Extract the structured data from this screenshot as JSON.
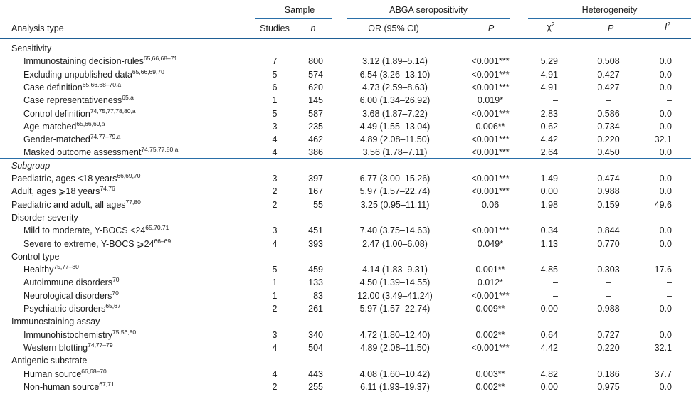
{
  "header": {
    "sample": "Sample",
    "abga": "ABGA seropositivity",
    "heterogeneity": "Heterogeneity",
    "analysis_type": "Analysis type",
    "studies": "Studies",
    "n": "n",
    "or_ci": "OR (95% CI)",
    "p": "P",
    "chi2_base": "χ",
    "chi2_sup": "2",
    "p2": "P",
    "i2_base": "I",
    "i2_sup": "2"
  },
  "rows": [
    {
      "type": "section",
      "label": "Sensitivity"
    },
    {
      "type": "data",
      "indent": true,
      "label": "Immunostaining decision-rules",
      "ref": "65,66,68–71",
      "studies": "7",
      "n": "800",
      "or": "3.12 (1.89–5.14)",
      "p": "<0.001***",
      "chi2": "5.29",
      "het_p": "0.508",
      "i2": "0.0"
    },
    {
      "type": "data",
      "indent": true,
      "label": "Excluding unpublished data",
      "ref": "65,66,69,70",
      "studies": "5",
      "n": "574",
      "or": "6.54 (3.26–13.10)",
      "p": "<0.001***",
      "chi2": "4.91",
      "het_p": "0.427",
      "i2": "0.0"
    },
    {
      "type": "data",
      "indent": true,
      "label": "Case definition",
      "ref": "65,66,68–70,a",
      "studies": "6",
      "n": "620",
      "or": "4.73 (2.59–8.63)",
      "p": "<0.001***",
      "chi2": "4.91",
      "het_p": "0.427",
      "i2": "0.0"
    },
    {
      "type": "data",
      "indent": true,
      "label": "Case representativeness",
      "ref": "65,a",
      "studies": "1",
      "n": "145",
      "or": "6.00 (1.34–26.92)",
      "p": "0.019*",
      "chi2": "–",
      "het_p": "–",
      "i2": "–"
    },
    {
      "type": "data",
      "indent": true,
      "label": "Control definition",
      "ref": "74,75,77,78,80,a",
      "studies": "5",
      "n": "587",
      "or": "3.68 (1.87–7.22)",
      "p": "<0.001***",
      "chi2": "2.83",
      "het_p": "0.586",
      "i2": "0.0"
    },
    {
      "type": "data",
      "indent": true,
      "label": "Age-matched",
      "ref": "65,66,69,a",
      "studies": "3",
      "n": "235",
      "or": "4.49 (1.55–13.04)",
      "p": "0.006**",
      "chi2": "0.62",
      "het_p": "0.734",
      "i2": "0.0"
    },
    {
      "type": "data",
      "indent": true,
      "label": "Gender-matched",
      "ref": "74,77–79,a",
      "studies": "4",
      "n": "462",
      "or": "4.89 (2.08–11.50)",
      "p": "<0.001***",
      "chi2": "4.42",
      "het_p": "0.220",
      "i2": "32.1"
    },
    {
      "type": "data",
      "indent": true,
      "label": "Masked outcome assessment",
      "ref": "74,75,77,80,a",
      "studies": "4",
      "n": "386",
      "or": "3.56 (1.78–7.11)",
      "p": "<0.001***",
      "chi2": "2.64",
      "het_p": "0.450",
      "i2": "0.0"
    },
    {
      "type": "section",
      "italic": true,
      "label": "Subgroup"
    },
    {
      "type": "data",
      "indent": false,
      "label": "Paediatric, ages <18 years",
      "ref": "66,69,70",
      "studies": "3",
      "n": "397",
      "or": "6.77 (3.00–15.26)",
      "p": "<0.001***",
      "chi2": "1.49",
      "het_p": "0.474",
      "i2": "0.0"
    },
    {
      "type": "data",
      "indent": false,
      "label": "Adult, ages ⩾18 years",
      "ref": "74,76",
      "studies": "2",
      "n": "167",
      "or": "5.97 (1.57–22.74)",
      "p": "<0.001***",
      "chi2": "0.00",
      "het_p": "0.988",
      "i2": "0.0"
    },
    {
      "type": "data",
      "indent": false,
      "label": "Paediatric and adult, all ages",
      "ref": "77,80",
      "studies": "2",
      "n": "55",
      "or": "3.25 (0.95–11.11)",
      "p": "0.06",
      "chi2": "1.98",
      "het_p": "0.159",
      "i2": "49.6"
    },
    {
      "type": "section",
      "label": "Disorder severity"
    },
    {
      "type": "data",
      "indent": true,
      "label": "Mild to moderate, Y-BOCS <24",
      "ref": "65,70,71",
      "studies": "3",
      "n": "451",
      "or": "7.40 (3.75–14.63)",
      "p": "<0.001***",
      "chi2": "0.34",
      "het_p": "0.844",
      "i2": "0.0"
    },
    {
      "type": "data",
      "indent": true,
      "label": "Severe to extreme, Y-BOCS ⩾24",
      "ref": "66–69",
      "studies": "4",
      "n": "393",
      "or": "2.47 (1.00–6.08)",
      "p": "0.049*",
      "chi2": "1.13",
      "het_p": "0.770",
      "i2": "0.0"
    },
    {
      "type": "section",
      "label": "Control type"
    },
    {
      "type": "data",
      "indent": true,
      "label": "Healthy",
      "ref": "75,77–80",
      "studies": "5",
      "n": "459",
      "or": "4.14 (1.83–9.31)",
      "p": "0.001**",
      "chi2": "4.85",
      "het_p": "0.303",
      "i2": "17.6"
    },
    {
      "type": "data",
      "indent": true,
      "label": "Autoimmune disorders",
      "ref": "70",
      "studies": "1",
      "n": "133",
      "or": "4.50 (1.39–14.55)",
      "p": "0.012*",
      "chi2": "–",
      "het_p": "–",
      "i2": "–"
    },
    {
      "type": "data",
      "indent": true,
      "label": "Neurological disorders",
      "ref": "70",
      "studies": "1",
      "n": "83",
      "or": "12.00 (3.49–41.24)",
      "p": "<0.001***",
      "chi2": "–",
      "het_p": "–",
      "i2": "–"
    },
    {
      "type": "data",
      "indent": true,
      "label": "Psychiatric disorders",
      "ref": "65,67",
      "studies": "2",
      "n": "261",
      "or": "5.97 (1.57–22.74)",
      "p": "0.009**",
      "chi2": "0.00",
      "het_p": "0.988",
      "i2": "0.0"
    },
    {
      "type": "section",
      "label": "Immunostaining assay"
    },
    {
      "type": "data",
      "indent": true,
      "label": "Immunohistochemistry",
      "ref": "75,56,80",
      "studies": "3",
      "n": "340",
      "or": "4.72 (1.80–12.40)",
      "p": "0.002**",
      "chi2": "0.64",
      "het_p": "0.727",
      "i2": "0.0"
    },
    {
      "type": "data",
      "indent": true,
      "label": "Western blotting",
      "ref": "74,77–79",
      "studies": "4",
      "n": "504",
      "or": "4.89 (2.08–11.50)",
      "p": "<0.001***",
      "chi2": "4.42",
      "het_p": "0.220",
      "i2": "32.1"
    },
    {
      "type": "section",
      "label": "Antigenic substrate"
    },
    {
      "type": "data",
      "indent": true,
      "label": "Human source",
      "ref": "66,68–70",
      "studies": "4",
      "n": "443",
      "or": "4.08 (1.60–10.42)",
      "p": "0.003**",
      "chi2": "4.82",
      "het_p": "0.186",
      "i2": "37.7"
    },
    {
      "type": "data",
      "indent": true,
      "label": "Non-human source",
      "ref": "67,71",
      "studies": "2",
      "n": "255",
      "or": "6.11 (1.93–19.37)",
      "p": "0.002**",
      "chi2": "0.00",
      "het_p": "0.975",
      "i2": "0.0"
    }
  ],
  "colors": {
    "rule": "#2a6fa8",
    "text": "#1a1a1a"
  }
}
